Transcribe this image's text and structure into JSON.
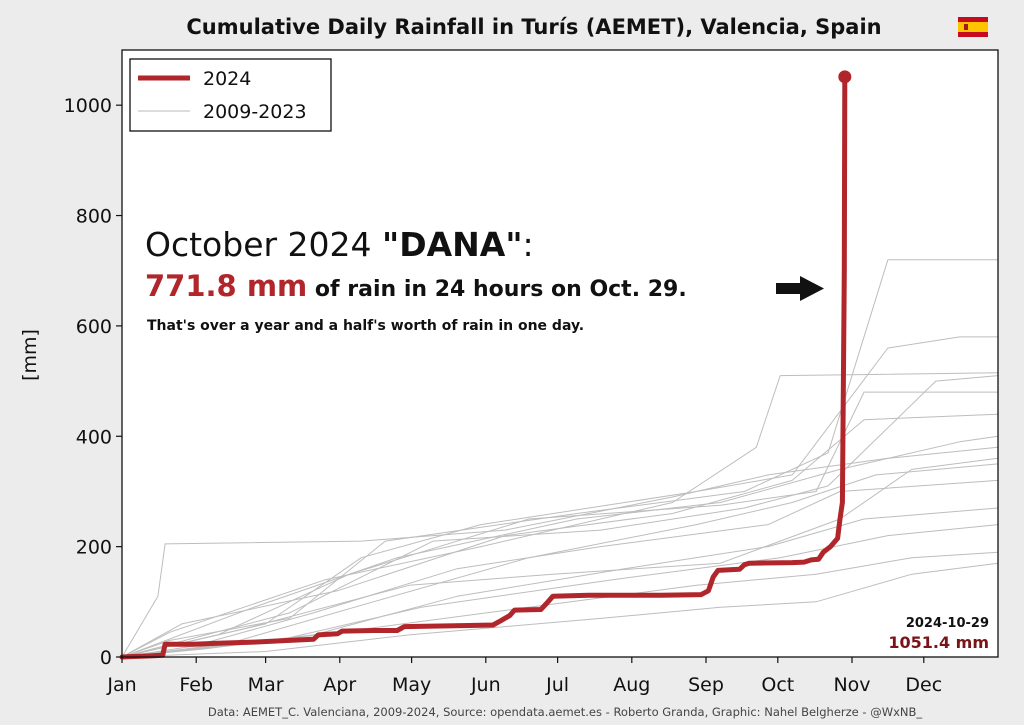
{
  "chart_data": {
    "type": "line",
    "title": "Cumulative Daily Rainfall in Turís (AEMET), Valencia, Spain",
    "title_flag": "spain-flag-icon",
    "ylabel": "[mm]",
    "xlabel": "",
    "ylim": [
      0,
      1100
    ],
    "xlim": [
      0,
      366
    ],
    "yticks": [
      0,
      200,
      400,
      600,
      800,
      1000
    ],
    "xticks": [
      {
        "label": "Jan",
        "day": 0
      },
      {
        "label": "Feb",
        "day": 31
      },
      {
        "label": "Mar",
        "day": 60
      },
      {
        "label": "Apr",
        "day": 91
      },
      {
        "label": "May",
        "day": 121
      },
      {
        "label": "Jun",
        "day": 152
      },
      {
        "label": "Jul",
        "day": 182
      },
      {
        "label": "Aug",
        "day": 213
      },
      {
        "label": "Sep",
        "day": 244
      },
      {
        "label": "Oct",
        "day": 274
      },
      {
        "label": "Nov",
        "day": 305
      },
      {
        "label": "Dec",
        "day": 335
      }
    ],
    "grid": false,
    "legend_position": "top-left",
    "legend": [
      {
        "label": "2024",
        "color": "#b0262b",
        "style": "thick"
      },
      {
        "label": "2009-2023",
        "color": "#c4c4c4",
        "style": "thin"
      }
    ],
    "series": [
      {
        "name": "2024",
        "color": "#b0262b",
        "points": [
          [
            0,
            0
          ],
          [
            12,
            2
          ],
          [
            17,
            3
          ],
          [
            18,
            23
          ],
          [
            30,
            23
          ],
          [
            40,
            25
          ],
          [
            55,
            27
          ],
          [
            70,
            30
          ],
          [
            80,
            32
          ],
          [
            82,
            40
          ],
          [
            90,
            42
          ],
          [
            92,
            47
          ],
          [
            105,
            48
          ],
          [
            115,
            48
          ],
          [
            118,
            55
          ],
          [
            130,
            56
          ],
          [
            145,
            57
          ],
          [
            155,
            58
          ],
          [
            158,
            65
          ],
          [
            162,
            75
          ],
          [
            164,
            85
          ],
          [
            175,
            86
          ],
          [
            178,
            100
          ],
          [
            180,
            110
          ],
          [
            195,
            112
          ],
          [
            225,
            112
          ],
          [
            242,
            113
          ],
          [
            245,
            120
          ],
          [
            247,
            145
          ],
          [
            249,
            157
          ],
          [
            258,
            159
          ],
          [
            260,
            167
          ],
          [
            262,
            170
          ],
          [
            280,
            171
          ],
          [
            285,
            172
          ],
          [
            288,
            176
          ],
          [
            291,
            177
          ],
          [
            293,
            190
          ],
          [
            296,
            200
          ],
          [
            298,
            210
          ],
          [
            299,
            215
          ],
          [
            300,
            250
          ],
          [
            301,
            280
          ],
          [
            301.8,
            700
          ],
          [
            302,
            1051.4
          ]
        ],
        "end_marker": true
      },
      {
        "name": "2009-2023",
        "color": "#c4c4c4",
        "values_note": "",
        "points": [
          [
            0,
            0
          ],
          [
            15,
            110
          ],
          [
            18,
            205
          ],
          [
            100,
            210
          ],
          [
            160,
            230
          ],
          [
            230,
            290
          ],
          [
            270,
            330
          ],
          [
            320,
            360
          ],
          [
            366,
            380
          ]
        ]
      },
      {
        "points": [
          [
            0,
            0
          ],
          [
            40,
            40
          ],
          [
            95,
            150
          ],
          [
            170,
            250
          ],
          [
            250,
            275
          ],
          [
            290,
            300
          ],
          [
            310,
            480
          ],
          [
            366,
            480
          ]
        ]
      },
      {
        "points": [
          [
            0,
            0
          ],
          [
            60,
            60
          ],
          [
            100,
            180
          ],
          [
            150,
            240
          ],
          [
            240,
            300
          ],
          [
            280,
            330
          ],
          [
            320,
            560
          ],
          [
            350,
            580
          ],
          [
            366,
            580
          ]
        ]
      },
      {
        "points": [
          [
            0,
            0
          ],
          [
            50,
            50
          ],
          [
            120,
            130
          ],
          [
            180,
            150
          ],
          [
            250,
            170
          ],
          [
            300,
            250
          ],
          [
            330,
            340
          ],
          [
            366,
            360
          ]
        ]
      },
      {
        "points": [
          [
            0,
            0
          ],
          [
            30,
            20
          ],
          [
            80,
            80
          ],
          [
            140,
            160
          ],
          [
            200,
            200
          ],
          [
            270,
            240
          ],
          [
            300,
            300
          ],
          [
            366,
            320
          ]
        ]
      },
      {
        "points": [
          [
            0,
            0
          ],
          [
            20,
            30
          ],
          [
            70,
            70
          ],
          [
            110,
            210
          ],
          [
            190,
            260
          ],
          [
            260,
            300
          ],
          [
            295,
            370
          ],
          [
            320,
            720
          ],
          [
            366,
            720
          ]
        ]
      },
      {
        "points": [
          [
            0,
            0
          ],
          [
            45,
            25
          ],
          [
            105,
            100
          ],
          [
            170,
            180
          ],
          [
            240,
            240
          ],
          [
            280,
            280
          ],
          [
            315,
            330
          ],
          [
            366,
            350
          ]
        ]
      },
      {
        "points": [
          [
            0,
            0
          ],
          [
            60,
            10
          ],
          [
            120,
            40
          ],
          [
            200,
            70
          ],
          [
            250,
            90
          ],
          [
            290,
            100
          ],
          [
            330,
            150
          ],
          [
            366,
            170
          ]
        ]
      },
      {
        "points": [
          [
            0,
            0
          ],
          [
            25,
            60
          ],
          [
            90,
            120
          ],
          [
            160,
            220
          ],
          [
            230,
            260
          ],
          [
            280,
            320
          ],
          [
            310,
            430
          ],
          [
            366,
            440
          ]
        ]
      },
      {
        "points": [
          [
            0,
            0
          ],
          [
            70,
            80
          ],
          [
            130,
            210
          ],
          [
            200,
            230
          ],
          [
            260,
            270
          ],
          [
            295,
            310
          ],
          [
            340,
            500
          ],
          [
            366,
            510
          ]
        ]
      },
      {
        "points": [
          [
            0,
            0
          ],
          [
            35,
            15
          ],
          [
            100,
            50
          ],
          [
            170,
            90
          ],
          [
            240,
            130
          ],
          [
            290,
            150
          ],
          [
            330,
            180
          ],
          [
            366,
            190
          ]
        ]
      },
      {
        "points": [
          [
            0,
            0
          ],
          [
            55,
            90
          ],
          [
            115,
            180
          ],
          [
            190,
            250
          ],
          [
            250,
            280
          ],
          [
            300,
            340
          ],
          [
            350,
            390
          ],
          [
            366,
            400
          ]
        ]
      },
      {
        "points": [
          [
            0,
            0
          ],
          [
            80,
            40
          ],
          [
            140,
            110
          ],
          [
            210,
            160
          ],
          [
            270,
            200
          ],
          [
            310,
            250
          ],
          [
            366,
            270
          ]
        ]
      },
      {
        "points": [
          [
            0,
            0
          ],
          [
            20,
            45
          ],
          [
            85,
            140
          ],
          [
            150,
            200
          ],
          [
            230,
            280
          ],
          [
            265,
            380
          ],
          [
            275,
            510
          ],
          [
            366,
            515
          ]
        ]
      },
      {
        "points": [
          [
            0,
            0
          ],
          [
            65,
            30
          ],
          [
            125,
            90
          ],
          [
            205,
            140
          ],
          [
            275,
            180
          ],
          [
            320,
            220
          ],
          [
            366,
            240
          ]
        ]
      }
    ],
    "annotations": {
      "line1_prefix": "October 2024 ",
      "line1_bold": "\"DANA\"",
      "line1_suffix": ":",
      "line2_red": "771.8 mm",
      "line2_rest": " of rain in 24 hours on Oct. 29.",
      "line3": "That's over a year and a half's worth of rain in one day.",
      "arrow_icon": "right-arrow-icon",
      "end_date": "2024-10-29",
      "end_value": "1051.4 mm"
    }
  },
  "footer": {
    "source": "Data: AEMET_C. Valenciana, 2009-2024, Source: opendata.aemet.es - Roberto Granda, Graphic: Nahel Belgherze - @WxNB_"
  }
}
